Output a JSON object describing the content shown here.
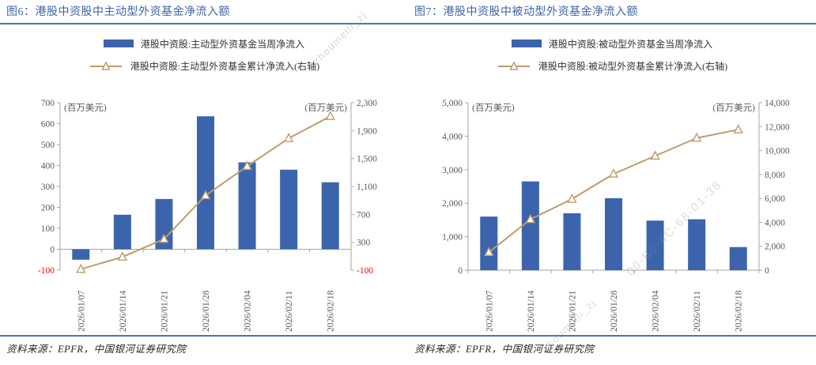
{
  "colors": {
    "bar": "#3B64AD",
    "line": "#BF9B6A",
    "marker_fill": "#FFFFFF",
    "title": "#3D65A6",
    "rule": "#4C74B8",
    "axis_line": "#A6A6A6",
    "tick_text": "#595959",
    "negative_tick": "#FF0000"
  },
  "watermarks": [
    {
      "text": "zhoumeili_zj"
    },
    {
      "text": "00-B0-4C-68-01-38"
    },
    {
      "text": "zhoumeili_zj"
    }
  ],
  "chart_data": [
    {
      "type": "bar",
      "subtype": "dual-axis bar+line",
      "title": "图6：港股中资股中主动型外资基金净流入额",
      "categories": [
        "2026/01/07",
        "2026/01/14",
        "2026/01/21",
        "2026/01/28",
        "2026/02/04",
        "2026/02/11",
        "2026/02/18"
      ],
      "series": [
        {
          "name": "港股中资股:主动型外资基金当周净流入",
          "type": "bar",
          "axis": "left",
          "values": [
            -50,
            165,
            240,
            635,
            415,
            380,
            320
          ]
        },
        {
          "name": "港股中资股:主动型外资基金累计净流入(右轴)",
          "type": "line",
          "axis": "right",
          "values": [
            -85,
            90,
            345,
            970,
            1390,
            1790,
            2105
          ]
        }
      ],
      "left_axis": {
        "unit_label": "(百万美元)",
        "min": -100,
        "max": 700,
        "step": 100
      },
      "right_axis": {
        "unit_label": "(百万美元)",
        "min": -100,
        "max": 2300,
        "step": 400
      },
      "grid": false,
      "legend_position": "top-center",
      "source": "资料来源：EPFR，中国银河证券研究院"
    },
    {
      "type": "bar",
      "subtype": "dual-axis bar+line",
      "title": "图7：港股中资股中被动型外资基金净流入额",
      "categories": [
        "2026/01/07",
        "2026/01/14",
        "2026/01/21",
        "2026/01/28",
        "2026/02/04",
        "2026/02/11",
        "2026/02/18"
      ],
      "series": [
        {
          "name": "港股中资股:被动型外资基金当周净流入",
          "type": "bar",
          "axis": "left",
          "values": [
            1600,
            2650,
            1700,
            2150,
            1480,
            1520,
            690
          ]
        },
        {
          "name": "港股中资股:被动型外资基金累计净流入(右轴)",
          "type": "line",
          "axis": "right",
          "values": [
            1500,
            4250,
            5950,
            8050,
            9550,
            11050,
            11750
          ]
        }
      ],
      "left_axis": {
        "unit_label": "(百万美元)",
        "min": 0,
        "max": 5000,
        "step": 1000
      },
      "right_axis": {
        "unit_label": "(百万美元)",
        "min": 0,
        "max": 14000,
        "step": 2000
      },
      "grid": false,
      "legend_position": "top-center",
      "source": "资料来源：EPFR，中国银河证券研究院"
    }
  ]
}
